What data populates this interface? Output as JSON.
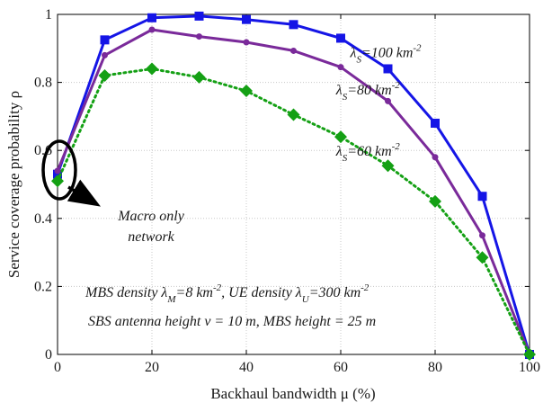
{
  "chart_data": {
    "type": "line",
    "xlabel": "Backhaul bandwidth μ (%)",
    "ylabel": "Service coverage probability ρ",
    "xlim": [
      0,
      100
    ],
    "ylim": [
      0,
      1
    ],
    "xticks": [
      0,
      20,
      40,
      60,
      80,
      100
    ],
    "yticks": [
      0,
      0.2,
      0.4,
      0.6,
      0.8,
      1
    ],
    "ytick_labels": [
      "0",
      "0.2",
      "0.4",
      "0.6",
      "0.8",
      "1"
    ],
    "grid": true,
    "series": [
      {
        "name": "λS=100 km-2",
        "color": "#1515e6",
        "line_style": "solid",
        "marker": "square",
        "x": [
          0,
          10,
          20,
          30,
          40,
          50,
          60,
          70,
          80,
          90,
          100
        ],
        "y": [
          0.53,
          0.925,
          0.99,
          0.995,
          0.985,
          0.97,
          0.93,
          0.84,
          0.68,
          0.465,
          0.0
        ],
        "label": {
          "base": "λ",
          "sub": "S",
          "rest": "=100 km",
          "sup": "-2"
        }
      },
      {
        "name": "λS=80 km-2",
        "color": "#7a2a9a",
        "line_style": "solid",
        "marker": "circle",
        "x": [
          0,
          10,
          20,
          30,
          40,
          50,
          60,
          70,
          80,
          90,
          100
        ],
        "y": [
          0.54,
          0.88,
          0.955,
          0.935,
          0.918,
          0.893,
          0.845,
          0.745,
          0.58,
          0.35,
          0.0
        ],
        "label": {
          "base": "λ",
          "sub": "S",
          "rest": "=80 km",
          "sup": "-2"
        }
      },
      {
        "name": "λS=60 km-2",
        "color": "#14a014",
        "line_style": "dotted",
        "marker": "diamond",
        "x": [
          0,
          10,
          20,
          30,
          40,
          50,
          60,
          70,
          80,
          90,
          100
        ],
        "y": [
          0.51,
          0.82,
          0.84,
          0.815,
          0.775,
          0.705,
          0.64,
          0.555,
          0.45,
          0.285,
          0.0
        ],
        "label": {
          "base": "λ",
          "sub": "S",
          "rest": "=60 km",
          "sup": "-2"
        }
      }
    ],
    "annotations": {
      "macro_line1": "Macro only",
      "macro_line2": "network",
      "density": {
        "p1": "MBS density λ",
        "s1": "M",
        "p2": "=8 km",
        "sup1": "-2",
        "p3": ", UE density λ",
        "s2": "U",
        "p4": "=300 km",
        "sup2": "-2"
      },
      "height": "SBS antenna height v = 10 m, MBS height = 25 m"
    }
  }
}
